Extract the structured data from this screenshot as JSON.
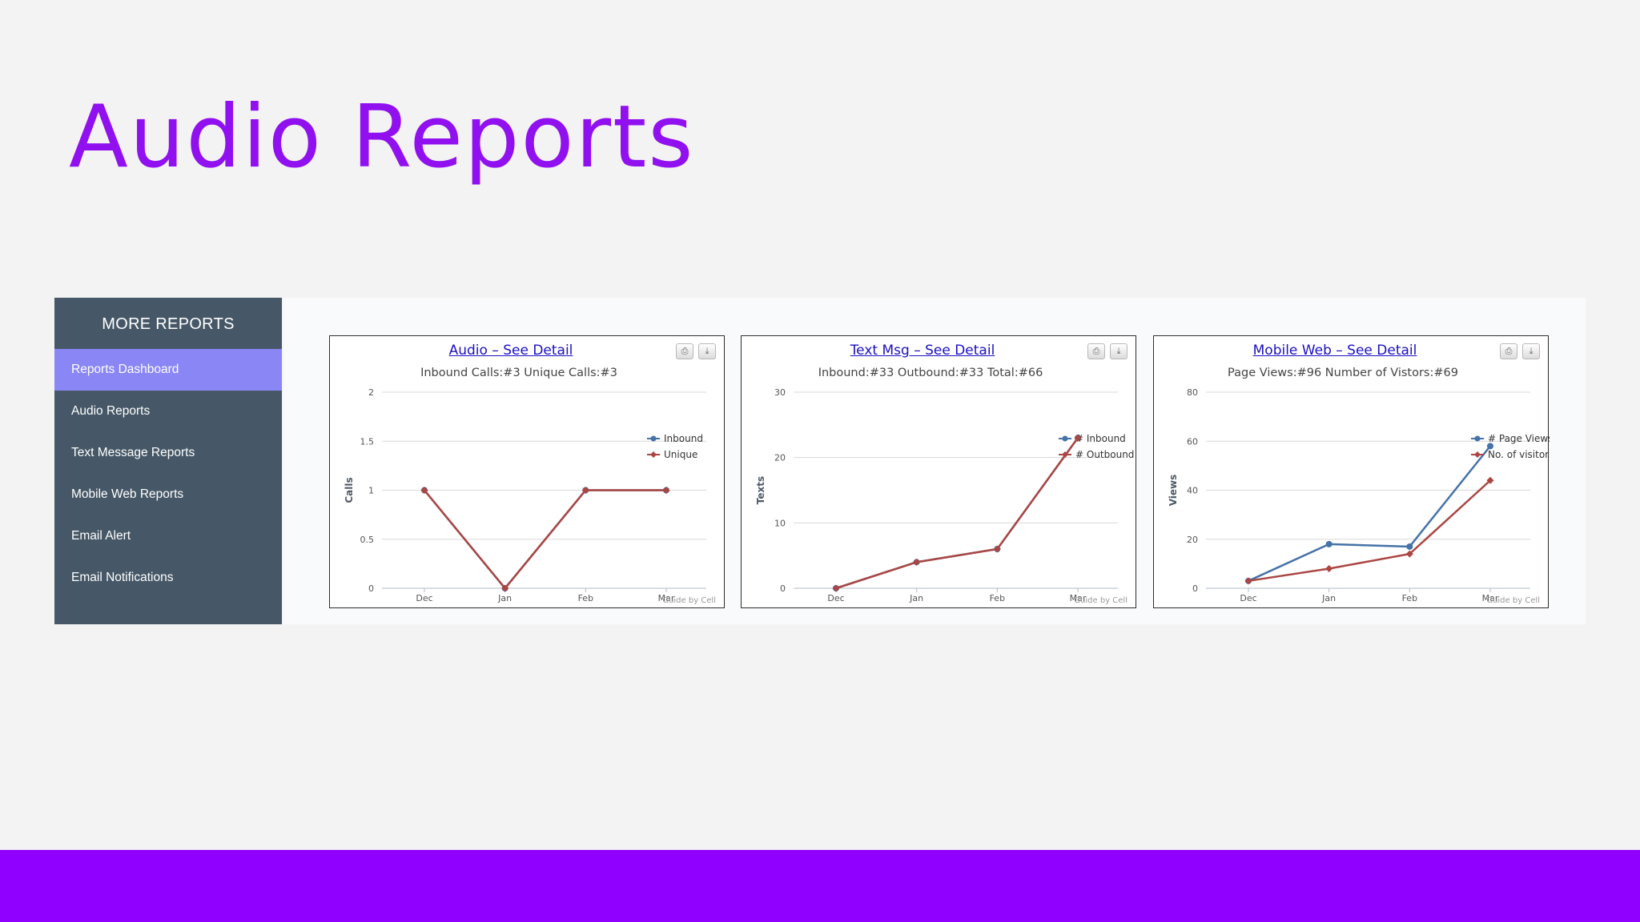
{
  "slide": {
    "title": "Audio Reports"
  },
  "sidebar": {
    "title": "MORE REPORTS",
    "items": [
      {
        "label": "Reports Dashboard",
        "active": true
      },
      {
        "label": "Audio Reports"
      },
      {
        "label": "Text Message Reports"
      },
      {
        "label": "Mobile Web Reports"
      },
      {
        "label": "Email Alert"
      },
      {
        "label": "Email Notifications"
      }
    ]
  },
  "icons": {
    "print": "printer-icon",
    "export": "download-icon"
  },
  "colors": {
    "accent": "#9010f0",
    "bar": "#8f00ff",
    "sidebar": "#465867",
    "active": "#8a86f6",
    "series_blue": "#4572a7",
    "series_red": "#aa4643"
  },
  "chart_data": [
    {
      "type": "line",
      "title": "Audio – See Detail",
      "subtitle": "Inbound Calls:#3 Unique Calls:#3",
      "ylabel": "Calls",
      "categories": [
        "Dec",
        "Jan",
        "Feb",
        "Mar"
      ],
      "yticks": [
        "0",
        "0.5",
        "1",
        "1.5",
        "2"
      ],
      "ylim": [
        0,
        2
      ],
      "grid": true,
      "legend_position": "right",
      "credit": "Guide by Cell",
      "series": [
        {
          "name": "Inbound",
          "color": "#4572a7",
          "values": [
            1,
            0,
            1,
            1
          ]
        },
        {
          "name": "Unique",
          "color": "#aa4643",
          "values": [
            1,
            0,
            1,
            1
          ]
        }
      ]
    },
    {
      "type": "line",
      "title": "Text Msg – See Detail",
      "subtitle": "Inbound:#33 Outbound:#33 Total:#66",
      "ylabel": "Texts",
      "categories": [
        "Dec",
        "Jan",
        "Feb",
        "Mar"
      ],
      "yticks": [
        "0",
        "10",
        "20",
        "30"
      ],
      "ylim": [
        0,
        30
      ],
      "grid": true,
      "legend_position": "right",
      "credit": "Guide by Cell",
      "series": [
        {
          "name": "# Inbound",
          "color": "#4572a7",
          "values": [
            0,
            4,
            6,
            23
          ]
        },
        {
          "name": "# Outbound",
          "color": "#aa4643",
          "values": [
            0,
            4,
            6,
            23
          ]
        }
      ]
    },
    {
      "type": "line",
      "title": "Mobile Web – See Detail",
      "subtitle": "Page Views:#96 Number of Vistors:#69",
      "ylabel": "Views",
      "categories": [
        "Dec",
        "Jan",
        "Feb",
        "Mar"
      ],
      "yticks": [
        "0",
        "20",
        "40",
        "60",
        "80"
      ],
      "ylim": [
        0,
        80
      ],
      "grid": true,
      "legend_position": "right",
      "credit": "Guide by Cell",
      "series": [
        {
          "name": "# Page Views",
          "color": "#4572a7",
          "values": [
            3,
            18,
            17,
            58
          ]
        },
        {
          "name": "No. of visitors",
          "color": "#aa4643",
          "values": [
            3,
            8,
            14,
            44
          ]
        }
      ]
    }
  ]
}
